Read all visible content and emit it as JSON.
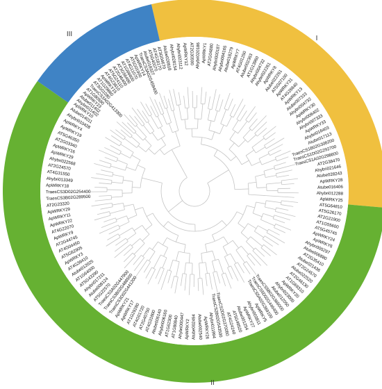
{
  "colors": {
    "group_I": "#F0C03F",
    "group_II": "#66B132",
    "group_III": "#3F83C5",
    "branch": "#c4c4c4",
    "label": "#111111"
  },
  "groups": [
    {
      "id": "I",
      "label": "I"
    },
    {
      "id": "II",
      "label": "II"
    },
    {
      "id": "III",
      "label": "III"
    }
  ],
  "leaves_by_group": {
    "I": [
      "Atube020818",
      "Ahybri028154",
      "Ahybri023112",
      "ApWRKY12",
      "AT2G30590",
      "Ahybri020186",
      "ApWRKY1",
      "AT2G04880",
      "Ahybri000187",
      "Ahybri004165",
      "Atube018279",
      "ApWRKY7",
      "AT4G01250",
      "Atube002363",
      "AT1G13960",
      "Ahybri004732",
      "Ahybri022261",
      "ApWRKY8",
      "Atube022261",
      "AT5G07100",
      "ApWRKY31",
      "AT4G26640",
      "ApWRKY13",
      "Atube007333",
      "Ahybri004732",
      "ApWRKY30",
      "Ahybri006402",
      "Ahybri007333",
      "ApWRKY33",
      "Ahybri016403",
      "Atube017113",
      "TraesCS1B02G308200",
      "TraesCS1D02G292700",
      "TraesCS1A02G298600",
      "AT2G38470",
      "Ahybri021646",
      "Atube028243",
      "ApWRKY28",
      "Atube016406",
      "Ahybri012288",
      "ApWRKY25"
    ],
    "II": [
      "AT5G64810",
      "AT5G26170",
      "AT2G21900",
      "AT1G55600",
      "AT5G45745",
      "ApWRKY24",
      "ApWRKY6",
      "Ahybri005297",
      "Atube006880",
      "AT2G35410",
      "Atube021436",
      "AT2G24570",
      "Atube022520",
      "AT2G46130",
      "AT1G69310",
      "ApWRKY20",
      "Ahybri023000",
      "Atube012050",
      "TraesCS5B02G366000",
      "TraesCS5D02G446400",
      "TraesCS5A02G369100",
      "ApWRKY5",
      "Ahybri003811",
      "ApWRKY27",
      "Atube001254",
      "AT5G49520",
      "AT4G24240",
      "TraesCS2D02G370050",
      "TraesCS2B02G543500",
      "Ahybri011994",
      "ApWRKY26",
      "Atube002540",
      "Atube002494",
      "ApWRKY2",
      "Ahybri000447",
      "AT1G80840",
      "AT1G62300",
      "Ahybri006160",
      "Atube006140",
      "AT4G31800",
      "AT2G40750",
      "AT4G01720",
      "AT1G29280",
      "ApWRKY17",
      "ApWRKY21",
      "TraesCS3D02G441200",
      "TraesCS3B02G488500",
      "TraesCS3A02G447900",
      "AT5G22570",
      "Atube008124",
      "Ahybri017211",
      "AT5G43290",
      "AT1G64000",
      "Atube012025",
      "AT4G39410",
      "ApWRKY3",
      "AT5G62905",
      "AT4G04450",
      "AT2G44745",
      "ApWRKY9",
      "AT4G22070",
      "ApWRKY22",
      "ApWRKY11",
      "ApWRKY29",
      "AT2G23320",
      "TraesCS3B02G289500",
      "TraesCS3D02G254400",
      "ApWRKY18",
      "Ahybri013349",
      "AT4G31550",
      "AT2G24570",
      "Ahybri022568",
      "ApWRKY29",
      "ApWRKY16",
      "AT2G03340",
      "AT5G46350",
      "ApWRKY19",
      "ApWRKY4",
      "Ahybri010428",
      "Atube014011"
    ],
    "III": [
      "ApWRKY10",
      "Ahybri011402",
      "Atube011402",
      "ApWRKY23",
      "AT1G80590",
      "TraesCS3A02G413300",
      "AT3G01080",
      "AT1G29860",
      "ApWRKY15",
      "AT4G23810",
      "AT5G24110",
      "AT2G46400",
      "AT3G56400",
      "AT1G66600",
      "AT4G11070",
      "AT5G01900",
      "ApWRKY14",
      "TraesCS3A02G459400",
      "Atube018327",
      "AT5G40070",
      "AT4G18170",
      "AT3G04670"
    ]
  }
}
